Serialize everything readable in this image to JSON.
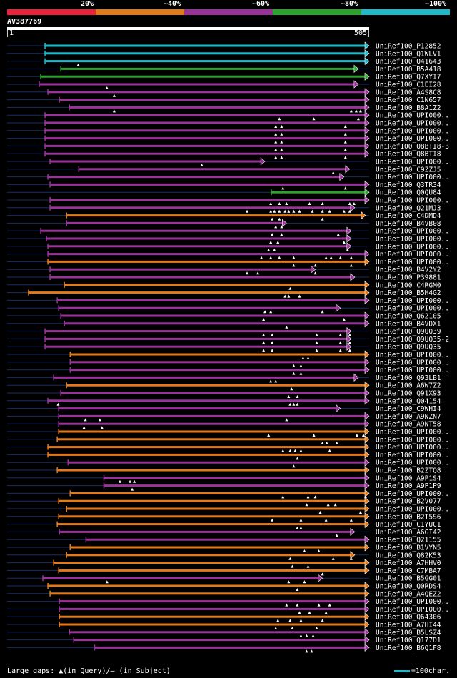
{
  "legend": {
    "segments": [
      {
        "label": "20%",
        "color": "#e8233a"
      },
      {
        "label": "~40%",
        "color": "#e27a1c"
      },
      {
        "label": "~60%",
        "color": "#993399"
      },
      {
        "label": "~80%",
        "color": "#2ea22e"
      },
      {
        "label": "~100%",
        "color": "#21b8c9"
      }
    ]
  },
  "query": {
    "name": "AV387769",
    "start": "1",
    "end": "505"
  },
  "hits": [
    {
      "label": "UniRef100_P12852",
      "color": "cyan",
      "s": 53,
      "e": 505,
      "gaps": []
    },
    {
      "label": "UniRef100_Q1WLV1",
      "color": "cyan",
      "s": 53,
      "e": 505,
      "gaps": []
    },
    {
      "label": "UniRef100_Q41643",
      "color": "cyan",
      "s": 53,
      "e": 505,
      "gaps": [
        100
      ]
    },
    {
      "label": "UniRef100_B5A418",
      "color": "green",
      "s": 75,
      "e": 490,
      "gaps": []
    },
    {
      "label": "UniRef100_Q7XYI7",
      "color": "green",
      "s": 47,
      "e": 505,
      "gaps": []
    },
    {
      "label": "UniRef100_C1EI28",
      "color": "purple",
      "s": 45,
      "e": 490,
      "gaps": [
        140
      ]
    },
    {
      "label": "UniRef100_A4S8C8",
      "color": "purple",
      "s": 57,
      "e": 505,
      "gaps": [
        150
      ]
    },
    {
      "label": "UniRef100_C1N657",
      "color": "purple",
      "s": 73,
      "e": 505,
      "gaps": []
    },
    {
      "label": "UniRef100_B8A1Z2",
      "color": "purple",
      "s": 87,
      "e": 505,
      "gaps": [
        150,
        480,
        487,
        493
      ]
    },
    {
      "label": "UniRef100_UPI000..",
      "color": "purple",
      "s": 53,
      "e": 505,
      "gaps": [
        380,
        428,
        490
      ]
    },
    {
      "label": "UniRef100_UPI000..",
      "color": "purple",
      "s": 53,
      "e": 505,
      "gaps": [
        375,
        383,
        472
      ]
    },
    {
      "label": "UniRef100_UPI000..",
      "color": "purple",
      "s": 53,
      "e": 505,
      "gaps": [
        375,
        383,
        472
      ]
    },
    {
      "label": "UniRef100_UPI000..",
      "color": "purple",
      "s": 53,
      "e": 505,
      "gaps": [
        375,
        383,
        472
      ]
    },
    {
      "label": "UniRef100_Q8BTI8-3",
      "color": "purple",
      "s": 53,
      "e": 505,
      "gaps": [
        375,
        383,
        472
      ]
    },
    {
      "label": "UniRef100_Q8BTI8",
      "color": "purple",
      "s": 53,
      "e": 505,
      "gaps": [
        375,
        383,
        472
      ]
    },
    {
      "label": "UniRef100_UPI000..",
      "color": "purple",
      "s": 60,
      "e": 360,
      "gaps": [
        272
      ]
    },
    {
      "label": "UniRef100_C9ZZJ5",
      "color": "purple",
      "s": 100,
      "e": 478,
      "gaps": [
        455
      ]
    },
    {
      "label": "UniRef100_UPI000..",
      "color": "purple",
      "s": 57,
      "e": 470,
      "gaps": []
    },
    {
      "label": "UniRef100_Q3TR34",
      "color": "purple",
      "s": 60,
      "e": 505,
      "gaps": [
        385,
        472
      ]
    },
    {
      "label": "UniRef100_Q0QU84",
      "color": "green",
      "s": 368,
      "e": 505,
      "gaps": []
    },
    {
      "label": "UniRef100_UPI000..",
      "color": "purple",
      "s": 60,
      "e": 505,
      "gaps": [
        368,
        380,
        390,
        422,
        440,
        478,
        484
      ]
    },
    {
      "label": "UniRef100_Q21MJ3",
      "color": "purple",
      "s": 60,
      "e": 485,
      "gaps": [
        335,
        368,
        373,
        380,
        388,
        393,
        400,
        408,
        426,
        440,
        450,
        470,
        478
      ]
    },
    {
      "label": "UniRef100_C4DMD4",
      "color": "orange",
      "s": 83,
      "e": 500,
      "gaps": [
        370,
        380,
        440
      ]
    },
    {
      "label": "UniRef100_B4VB08",
      "color": "purple",
      "s": 83,
      "e": 390,
      "gaps": [
        375,
        383
      ]
    },
    {
      "label": "UniRef100_UPI000..",
      "color": "purple",
      "s": 47,
      "e": 480,
      "gaps": [
        370,
        383,
        462
      ]
    },
    {
      "label": "UniRef100_UPI000..",
      "color": "purple",
      "s": 55,
      "e": 480,
      "gaps": [
        368,
        378,
        470
      ]
    },
    {
      "label": "UniRef100_UPI000..",
      "color": "purple",
      "s": 57,
      "e": 480,
      "gaps": [
        365,
        373,
        475
      ]
    },
    {
      "label": "UniRef100_UPI000..",
      "color": "purple",
      "s": 57,
      "e": 505,
      "gaps": [
        355,
        368,
        380,
        400,
        445,
        452,
        465,
        480
      ]
    },
    {
      "label": "UniRef100_UPI000..",
      "color": "orange",
      "s": 57,
      "e": 505,
      "gaps": [
        400,
        430,
        480
      ]
    },
    {
      "label": "UniRef100_B4V2Y2",
      "color": "purple",
      "s": 60,
      "e": 430,
      "gaps": [
        335,
        350,
        430
      ]
    },
    {
      "label": "UniRef100_P39881",
      "color": "purple",
      "s": 60,
      "e": 485,
      "gaps": []
    },
    {
      "label": "UniRef100_C4RGM0",
      "color": "orange",
      "s": 80,
      "e": 505,
      "gaps": [
        395
      ]
    },
    {
      "label": "UniRef100_B5H4G2",
      "color": "orange",
      "s": 30,
      "e": 505,
      "gaps": [
        388,
        393,
        408
      ]
    },
    {
      "label": "UniRef100_UPI000..",
      "color": "purple",
      "s": 70,
      "e": 505,
      "gaps": []
    },
    {
      "label": "UniRef100_UPI000..",
      "color": "purple",
      "s": 72,
      "e": 465,
      "gaps": [
        360,
        368,
        440
      ]
    },
    {
      "label": "UniRef100_Q62105",
      "color": "purple",
      "s": 75,
      "e": 505,
      "gaps": [
        358,
        470
      ]
    },
    {
      "label": "UniRef100_B4VDX1",
      "color": "purple",
      "s": 80,
      "e": 505,
      "gaps": [
        390
      ]
    },
    {
      "label": "UniRef100_Q9UQ39",
      "color": "purple",
      "s": 53,
      "e": 480,
      "gaps": [
        358,
        370,
        432,
        465,
        478
      ]
    },
    {
      "label": "UniRef100_Q9UQ35-2",
      "color": "purple",
      "s": 53,
      "e": 480,
      "gaps": [
        358,
        370,
        432,
        465,
        478
      ]
    },
    {
      "label": "UniRef100_Q9UQ35",
      "color": "purple",
      "s": 53,
      "e": 480,
      "gaps": [
        358,
        370,
        432,
        465,
        478
      ]
    },
    {
      "label": "UniRef100_UPI000..",
      "color": "orange",
      "s": 88,
      "e": 505,
      "gaps": [
        413,
        420
      ]
    },
    {
      "label": "UniRef100_UPI000..",
      "color": "purple",
      "s": 88,
      "e": 505,
      "gaps": [
        400,
        410
      ]
    },
    {
      "label": "UniRef100_UPI000..",
      "color": "purple",
      "s": 88,
      "e": 505,
      "gaps": [
        400,
        410
      ]
    },
    {
      "label": "UniRef100_Q93LB1",
      "color": "purple",
      "s": 65,
      "e": 490,
      "gaps": [
        368,
        375
      ]
    },
    {
      "label": "UniRef100_A6W7Z2",
      "color": "orange",
      "s": 83,
      "e": 505,
      "gaps": [
        397
      ]
    },
    {
      "label": "UniRef100_Q91X93",
      "color": "purple",
      "s": 75,
      "e": 505,
      "gaps": [
        393,
        405
      ]
    },
    {
      "label": "UniRef100_Q04154",
      "color": "purple",
      "s": 57,
      "e": 505,
      "gaps": [
        72,
        395,
        400,
        405
      ]
    },
    {
      "label": "UniRef100_C9WHI4",
      "color": "purple",
      "s": 72,
      "e": 465,
      "gaps": []
    },
    {
      "label": "UniRef100_A9NZN7",
      "color": "purple",
      "s": 72,
      "e": 505,
      "gaps": [
        110,
        130,
        390
      ]
    },
    {
      "label": "UniRef100_A9NT58",
      "color": "purple",
      "s": 72,
      "e": 505,
      "gaps": [
        108,
        133
      ]
    },
    {
      "label": "UniRef100_UPI000..",
      "color": "orange",
      "s": 72,
      "e": 505,
      "gaps": [
        365,
        428,
        488,
        497
      ]
    },
    {
      "label": "UniRef100_UPI000..",
      "color": "orange",
      "s": 70,
      "e": 505,
      "gaps": [
        440,
        446,
        460
      ]
    },
    {
      "label": "UniRef100_UPI000..",
      "color": "orange",
      "s": 57,
      "e": 505,
      "gaps": [
        385,
        395,
        402,
        410,
        450
      ]
    },
    {
      "label": "UniRef100_UPI000..",
      "color": "orange",
      "s": 57,
      "e": 505,
      "gaps": [
        405
      ]
    },
    {
      "label": "UniRef100_UPI000..",
      "color": "purple",
      "s": 85,
      "e": 505,
      "gaps": [
        400
      ]
    },
    {
      "label": "UniRef100_B2ZTQ8",
      "color": "orange",
      "s": 70,
      "e": 505,
      "gaps": []
    },
    {
      "label": "UniRef100_A9P1S4",
      "color": "purple",
      "s": 135,
      "e": 505,
      "gaps": [
        158,
        172,
        178
      ]
    },
    {
      "label": "UniRef100_A9P1P9",
      "color": "purple",
      "s": 135,
      "e": 505,
      "gaps": [
        175
      ]
    },
    {
      "label": "UniRef100_UPI000..",
      "color": "orange",
      "s": 88,
      "e": 505,
      "gaps": [
        385,
        420,
        430,
        500
      ]
    },
    {
      "label": "UniRef100_B2V077",
      "color": "orange",
      "s": 72,
      "e": 505,
      "gaps": [
        418,
        448,
        458
      ]
    },
    {
      "label": "UniRef100_UPI000..",
      "color": "orange",
      "s": 83,
      "e": 505,
      "gaps": [
        437,
        493
      ]
    },
    {
      "label": "UniRef100_B2T5S6",
      "color": "orange",
      "s": 72,
      "e": 505,
      "gaps": [
        370,
        410,
        445,
        480
      ]
    },
    {
      "label": "UniRef100_C1YUC1",
      "color": "orange",
      "s": 70,
      "e": 505,
      "gaps": [
        405,
        410
      ]
    },
    {
      "label": "UniRef100_A6GI42",
      "color": "purple",
      "s": 73,
      "e": 485,
      "gaps": [
        460
      ]
    },
    {
      "label": "UniRef100_Q21155",
      "color": "purple",
      "s": 110,
      "e": 505,
      "gaps": []
    },
    {
      "label": "UniRef100_B1VYN5",
      "color": "orange",
      "s": 88,
      "e": 505,
      "gaps": [
        415,
        435
      ]
    },
    {
      "label": "UniRef100_Q82K53",
      "color": "orange",
      "s": 83,
      "e": 485,
      "gaps": [
        395,
        455,
        480
      ]
    },
    {
      "label": "UniRef100_A7HHV0",
      "color": "orange",
      "s": 65,
      "e": 505,
      "gaps": [
        398,
        420
      ]
    },
    {
      "label": "UniRef100_C7MBA7",
      "color": "orange",
      "s": 72,
      "e": 505,
      "gaps": [
        440
      ]
    },
    {
      "label": "UniRef100_B5GG01",
      "color": "purple",
      "s": 50,
      "e": 440,
      "gaps": [
        140,
        393,
        415
      ]
    },
    {
      "label": "UniRef100_Q0RDS4",
      "color": "orange",
      "s": 57,
      "e": 505,
      "gaps": [
        405
      ]
    },
    {
      "label": "UniRef100_A4QEZ2",
      "color": "orange",
      "s": 60,
      "e": 505,
      "gaps": []
    },
    {
      "label": "UniRef100_UPI000..",
      "color": "purple",
      "s": 73,
      "e": 505,
      "gaps": [
        390,
        405,
        435,
        450
      ]
    },
    {
      "label": "UniRef100_UPI000..",
      "color": "purple",
      "s": 73,
      "e": 505,
      "gaps": [
        408,
        422,
        445
      ]
    },
    {
      "label": "UniRef100_Q64306",
      "color": "orange",
      "s": 73,
      "e": 505,
      "gaps": [
        378,
        395,
        410,
        440
      ]
    },
    {
      "label": "UniRef100_A7HI44",
      "color": "orange",
      "s": 73,
      "e": 505,
      "gaps": [
        375,
        398,
        432
      ]
    },
    {
      "label": "UniRef100_B5LSZ4",
      "color": "purple",
      "s": 87,
      "e": 505,
      "gaps": [
        410,
        418,
        427
      ]
    },
    {
      "label": "UniRef100_Q177D1",
      "color": "purple",
      "s": 93,
      "e": 505,
      "gaps": []
    },
    {
      "label": "UniRef100_B6Q1F8",
      "color": "purple",
      "s": 122,
      "e": 505,
      "gaps": [
        418,
        425
      ]
    }
  ],
  "footer": {
    "left": "Large gaps: ▲(in Query)/— (in Subject)",
    "right": "=100char."
  }
}
